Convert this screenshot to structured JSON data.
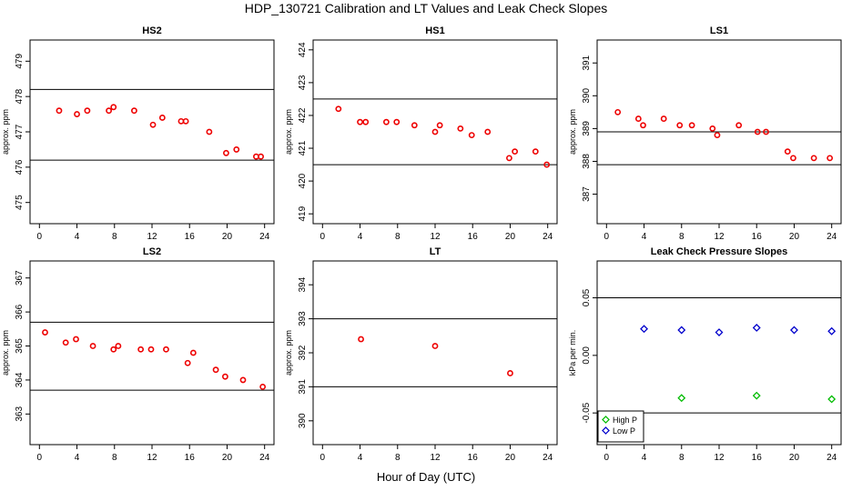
{
  "figure": {
    "title": "HDP_130721  Calibration and LT Values and Leak Check Slopes",
    "xlabel": "Hour of Day (UTC)"
  },
  "colors": {
    "points": "#ee0000",
    "high_p": "#00bb00",
    "low_p": "#0000cc",
    "lines": "#000000"
  },
  "chart_data": [
    {
      "type": "scatter",
      "title": "HS2",
      "ylabel": "approx. ppm",
      "xlim": [
        -1,
        25
      ],
      "ylim": [
        474.4,
        479.6
      ],
      "xticks": [
        0,
        4,
        8,
        12,
        16,
        20,
        24
      ],
      "yticks": [
        475,
        476,
        477,
        478,
        479
      ],
      "hlines": [
        478.2,
        476.2
      ],
      "series": [
        {
          "x": [
            2.1,
            4.0,
            5.1,
            7.4,
            7.9,
            10.1,
            12.1,
            13.1,
            15.1,
            15.6,
            18.1,
            19.9,
            21.0,
            23.1,
            23.6
          ],
          "y": [
            477.6,
            477.5,
            477.6,
            477.6,
            477.7,
            477.6,
            477.2,
            477.4,
            477.3,
            477.3,
            477.0,
            476.4,
            476.5,
            476.3,
            476.3
          ]
        }
      ]
    },
    {
      "type": "scatter",
      "title": "HS1",
      "ylabel": "approx. ppm",
      "xlim": [
        -1,
        25
      ],
      "ylim": [
        418.7,
        424.3
      ],
      "xticks": [
        0,
        4,
        8,
        12,
        16,
        20,
        24
      ],
      "yticks": [
        419,
        420,
        421,
        422,
        423,
        424
      ],
      "hlines": [
        422.5,
        420.5
      ],
      "series": [
        {
          "x": [
            1.7,
            4.0,
            4.6,
            6.8,
            7.9,
            9.8,
            12.0,
            12.5,
            14.7,
            15.9,
            17.6,
            19.9,
            20.5,
            22.7,
            23.9
          ],
          "y": [
            422.2,
            421.8,
            421.8,
            421.8,
            421.8,
            421.7,
            421.5,
            421.7,
            421.6,
            421.4,
            421.5,
            420.7,
            420.9,
            420.9,
            420.5
          ]
        }
      ]
    },
    {
      "type": "scatter",
      "title": "LS1",
      "ylabel": "approx. ppm",
      "xlim": [
        -1,
        25
      ],
      "ylim": [
        386.1,
        391.7
      ],
      "xticks": [
        0,
        4,
        8,
        12,
        16,
        20,
        24
      ],
      "yticks": [
        387,
        388,
        389,
        390,
        391
      ],
      "hlines": [
        388.9,
        387.9
      ],
      "series": [
        {
          "x": [
            1.2,
            3.4,
            3.9,
            6.1,
            7.8,
            9.1,
            11.3,
            11.8,
            14.1,
            16.1,
            17.0,
            19.3,
            19.9,
            22.1,
            23.8
          ],
          "y": [
            389.5,
            389.3,
            389.1,
            389.3,
            389.1,
            389.1,
            389.0,
            388.8,
            389.1,
            388.9,
            388.9,
            388.3,
            388.1,
            388.1,
            388.1
          ]
        }
      ]
    },
    {
      "type": "scatter",
      "title": "LS2",
      "ylabel": "approx. ppm",
      "xlim": [
        -1,
        25
      ],
      "ylim": [
        362.1,
        367.5
      ],
      "xticks": [
        0,
        4,
        8,
        12,
        16,
        20,
        24
      ],
      "yticks": [
        363,
        364,
        365,
        366,
        367
      ],
      "hlines": [
        365.7,
        363.7
      ],
      "series": [
        {
          "x": [
            0.6,
            2.8,
            3.9,
            5.7,
            7.9,
            8.4,
            10.8,
            11.9,
            13.5,
            15.8,
            16.4,
            18.8,
            19.8,
            21.7,
            23.8
          ],
          "y": [
            365.4,
            365.1,
            365.2,
            365.0,
            364.9,
            365.0,
            364.9,
            364.9,
            364.9,
            364.5,
            364.8,
            364.3,
            364.1,
            364.0,
            363.8
          ]
        }
      ]
    },
    {
      "type": "scatter",
      "title": "LT",
      "ylabel": "approx. ppm",
      "xlim": [
        -1,
        25
      ],
      "ylim": [
        389.3,
        394.7
      ],
      "xticks": [
        0,
        4,
        8,
        12,
        16,
        20,
        24
      ],
      "yticks": [
        390,
        391,
        392,
        393,
        394
      ],
      "hlines": [
        393.0,
        391.0
      ],
      "series": [
        {
          "x": [
            4.1,
            12.0,
            20.0
          ],
          "y": [
            392.4,
            392.2,
            391.4
          ]
        }
      ]
    },
    {
      "type": "scatter",
      "title": "Leak Check Pressure Slopes",
      "ylabel": "kPa per min.",
      "xlim": [
        -1,
        25
      ],
      "ylim": [
        -0.0775,
        0.082
      ],
      "xticks": [
        0,
        4,
        8,
        12,
        16,
        20,
        24
      ],
      "yticks": [
        0.05,
        0.0,
        -0.05
      ],
      "ytick_labels": [
        "0.05",
        "0.00",
        "-0.05"
      ],
      "hlines": [
        0.05,
        -0.05
      ],
      "legend": {
        "position": "bottom-left",
        "entries": [
          "High P",
          "Low P"
        ]
      },
      "series": [
        {
          "name": "High P",
          "x": [
            8,
            16,
            24
          ],
          "y": [
            -0.037,
            -0.035,
            -0.038
          ]
        },
        {
          "name": "Low P",
          "x": [
            4,
            8,
            12,
            16,
            20,
            24
          ],
          "y": [
            0.023,
            0.022,
            0.02,
            0.024,
            0.022,
            0.021
          ]
        }
      ]
    }
  ]
}
